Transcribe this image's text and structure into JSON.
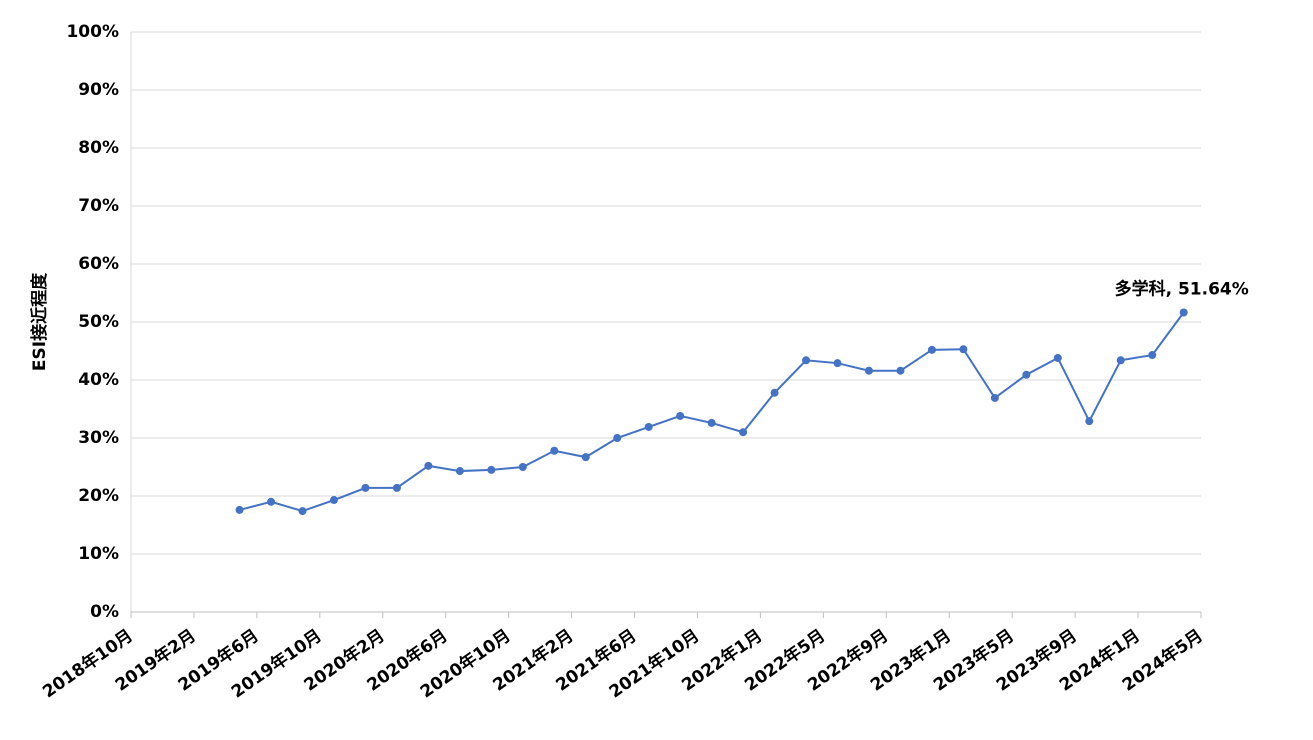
{
  "chart_data": {
    "type": "line",
    "y_label": "ESI接近程度",
    "categories": [
      "2018年10月",
      null,
      "2019年2月",
      null,
      "2019年6月",
      null,
      "2019年10月",
      null,
      "2020年2月",
      null,
      "2020年6月",
      null,
      "2020年10月",
      null,
      "2021年2月",
      null,
      "2021年6月",
      null,
      "2021年10月",
      null,
      "2022年1月",
      null,
      "2022年5月",
      null,
      "2022年9月",
      null,
      "2023年1月",
      null,
      "2023年5月",
      null,
      "2023年9月",
      null,
      "2024年1月",
      null,
      "2024年5月"
    ],
    "series": [
      {
        "name": "多学科",
        "color": "#4472c4",
        "values": [
          null,
          null,
          null,
          17.6,
          19.0,
          17.4,
          19.3,
          21.4,
          21.4,
          25.2,
          24.3,
          24.5,
          25.0,
          27.8,
          26.7,
          30.0,
          31.9,
          33.8,
          32.6,
          31.0,
          37.8,
          43.4,
          42.9,
          41.6,
          41.6,
          45.2,
          45.3,
          36.9,
          40.9,
          43.8,
          32.9,
          43.4,
          44.3,
          51.64,
          null
        ],
        "value_labels": [
          null,
          null,
          null,
          null,
          null,
          null,
          null,
          null,
          null,
          null,
          null,
          null,
          null,
          null,
          null,
          null,
          null,
          null,
          null,
          null,
          null,
          null,
          null,
          null,
          null,
          null,
          null,
          null,
          null,
          null,
          null,
          null,
          null,
          "多学科, 51.64%",
          null
        ]
      }
    ],
    "ylim": [
      0,
      100
    ],
    "yticks": [
      {
        "value": 0,
        "label": "0%"
      },
      {
        "value": 10,
        "label": "10%"
      },
      {
        "value": 20,
        "label": "20%"
      },
      {
        "value": 30,
        "label": "30%"
      },
      {
        "value": 40,
        "label": "40%"
      },
      {
        "value": 50,
        "label": "50%"
      },
      {
        "value": 60,
        "label": "60%"
      },
      {
        "value": 70,
        "label": "70%"
      },
      {
        "value": 80,
        "label": "80%"
      },
      {
        "value": 90,
        "label": "90%"
      },
      {
        "value": 100,
        "label": "100%"
      }
    ],
    "grid": true
  }
}
